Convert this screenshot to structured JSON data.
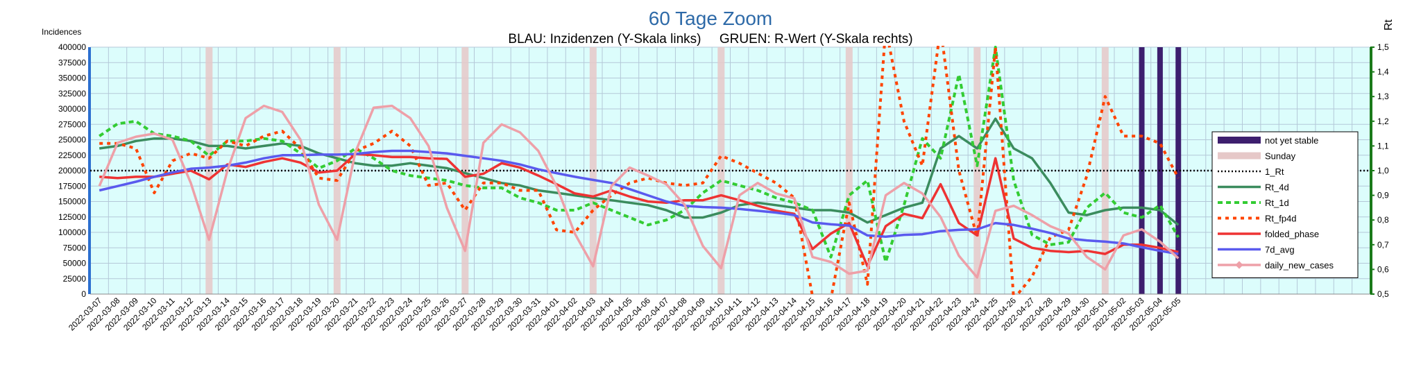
{
  "chart_data": {
    "type": "line",
    "title": "60 Tage Zoom",
    "subtitle": "BLAU: Inzidenzen (Y-Skala links)     GRUEN: R-Wert (Y-Skala rechts)",
    "ylabel_left": "Incidences",
    "ylabel_right": "Rt",
    "ylim_left": [
      0,
      400000
    ],
    "ylim_right": [
      0.5,
      1.5
    ],
    "yticks_left": [
      "0",
      "25000",
      "50000",
      "75000",
      "100000",
      "125000",
      "150000",
      "175000",
      "200000",
      "225000",
      "250000",
      "275000",
      "300000",
      "325000",
      "350000",
      "375000",
      "400000"
    ],
    "yticks_right": [
      "0,5",
      "0,6",
      "0,7",
      "0,8",
      "0,9",
      "1,0",
      "1,1",
      "1,2",
      "1,3",
      "1,4",
      "1,5"
    ],
    "x": [
      "2022-03-07",
      "2022-03-08",
      "2022-03-09",
      "2022-03-10",
      "2022-03-11",
      "2022-03-12",
      "2022-03-13",
      "2022-03-14",
      "2022-03-15",
      "2022-03-16",
      "2022-03-17",
      "2022-03-18",
      "2022-03-19",
      "2022-03-20",
      "2022-03-21",
      "2022-03-22",
      "2022-03-23",
      "2022-03-24",
      "2022-03-25",
      "2022-03-26",
      "2022-03-27",
      "2022-03-28",
      "2022-03-29",
      "2022-03-30",
      "2022-03-31",
      "2022-04-01",
      "2022-04-02",
      "2022-04-03",
      "2022-04-04",
      "2022-04-05",
      "2022-04-06",
      "2022-04-07",
      "2022-04-08",
      "2022-04-09",
      "2022-04-10",
      "2022-04-11",
      "2022-04-12",
      "2022-04-13",
      "2022-04-14",
      "2022-04-15",
      "2022-04-16",
      "2022-04-17",
      "2022-04-18",
      "2022-04-19",
      "2022-04-20",
      "2022-04-21",
      "2022-04-22",
      "2022-04-23",
      "2022-04-24",
      "2022-04-25",
      "2022-04-26",
      "2022-04-27",
      "2022-04-28",
      "2022-04-29",
      "2022-04-30",
      "2022-05-01",
      "2022-05-02",
      "2022-05-03",
      "2022-05-04",
      "2022-05-05"
    ],
    "grid": true,
    "legend_position": "right",
    "sundays": [
      "2022-03-13",
      "2022-03-20",
      "2022-03-27",
      "2022-04-03",
      "2022-04-10",
      "2022-04-17",
      "2022-04-24",
      "2022-05-01"
    ],
    "not_yet_stable": [
      "2022-05-03",
      "2022-05-04",
      "2022-05-05"
    ],
    "series": [
      {
        "name": "not yet stable",
        "color": "#3d1f6e",
        "style": "bar"
      },
      {
        "name": "Sunday",
        "color": "#e6c8c8",
        "style": "bar"
      },
      {
        "name": "1_Rt",
        "color": "#000000",
        "style": "dotted",
        "axis": "right",
        "value": 1.0
      },
      {
        "name": "Rt_4d",
        "color": "#3b8c5e",
        "style": "solid",
        "axis": "right",
        "values": [
          1.09,
          1.1,
          1.12,
          1.13,
          1.13,
          1.12,
          1.1,
          1.1,
          1.09,
          1.1,
          1.11,
          1.1,
          1.07,
          1.05,
          1.03,
          1.02,
          1.02,
          1.03,
          1.02,
          1.01,
          0.99,
          0.97,
          0.95,
          0.94,
          0.92,
          0.91,
          0.9,
          0.89,
          0.88,
          0.87,
          0.86,
          0.84,
          0.81,
          0.81,
          0.83,
          0.86,
          0.87,
          0.86,
          0.85,
          0.84,
          0.84,
          0.83,
          0.79,
          0.82,
          0.85,
          0.87,
          1.09,
          1.14,
          1.09,
          1.21,
          1.09,
          1.05,
          0.95,
          0.83,
          0.82,
          0.84,
          0.85,
          0.85,
          0.84,
          0.78
        ]
      },
      {
        "name": "Rt_1d",
        "color": "#33cc33",
        "style": "dashed",
        "axis": "right",
        "values": [
          1.14,
          1.19,
          1.2,
          1.15,
          1.14,
          1.12,
          1.06,
          1.12,
          1.12,
          1.13,
          1.12,
          1.07,
          1.01,
          1.04,
          1.09,
          1.05,
          1.0,
          0.98,
          0.97,
          0.96,
          0.94,
          0.93,
          0.93,
          0.89,
          0.87,
          0.84,
          0.84,
          0.87,
          0.84,
          0.81,
          0.78,
          0.8,
          0.84,
          0.91,
          0.96,
          0.94,
          0.92,
          0.89,
          0.87,
          0.84,
          0.65,
          0.9,
          0.96,
          0.63,
          0.86,
          1.13,
          1.05,
          1.39,
          1.02,
          1.5,
          0.96,
          0.74,
          0.7,
          0.71,
          0.85,
          0.91,
          0.83,
          0.81,
          0.86,
          0.73
        ]
      },
      {
        "name": "Rt_fp4d",
        "color": "#ff4400",
        "style": "dotted",
        "axis": "right",
        "values": [
          1.11,
          1.11,
          1.09,
          0.91,
          1.04,
          1.07,
          1.05,
          1.12,
          1.1,
          1.14,
          1.16,
          1.09,
          0.97,
          0.96,
          1.08,
          1.11,
          1.16,
          1.1,
          0.94,
          0.95,
          0.84,
          0.95,
          0.95,
          0.92,
          0.92,
          0.76,
          0.75,
          0.84,
          0.9,
          0.95,
          0.97,
          0.95,
          0.94,
          0.95,
          1.06,
          1.03,
          0.99,
          0.95,
          0.89,
          0.49,
          0.48,
          0.87,
          0.54,
          1.58,
          1.2,
          1.02,
          1.58,
          1.0,
          0.73,
          1.5,
          0.48,
          0.57,
          0.73,
          0.76,
          0.98,
          1.3,
          1.14,
          1.14,
          1.11,
          0.97
        ]
      },
      {
        "name": "folded_phase",
        "color": "#ee3333",
        "style": "solid",
        "axis": "left",
        "values": [
          190000,
          188000,
          190000,
          190000,
          195000,
          200000,
          186000,
          210000,
          206000,
          214000,
          220000,
          213000,
          197000,
          200000,
          227000,
          225000,
          222000,
          222000,
          220000,
          219000,
          190000,
          195000,
          212000,
          205000,
          192000,
          178000,
          163000,
          158000,
          168000,
          158000,
          150000,
          148000,
          152000,
          152000,
          160000,
          152000,
          143000,
          135000,
          130000,
          73000,
          98000,
          115000,
          45000,
          110000,
          130000,
          123000,
          178000,
          115000,
          95000,
          220000,
          90000,
          75000,
          70000,
          68000,
          70000,
          65000,
          80000,
          80000,
          75000,
          68000
        ]
      },
      {
        "name": "7d_avg",
        "color": "#5a5aee",
        "style": "solid",
        "axis": "left",
        "values": [
          168000,
          175000,
          182000,
          190000,
          197000,
          203000,
          205000,
          208000,
          213000,
          220000,
          225000,
          225000,
          226000,
          226000,
          227000,
          230000,
          232000,
          232000,
          230000,
          228000,
          224000,
          220000,
          216000,
          210000,
          202000,
          196000,
          190000,
          185000,
          180000,
          170000,
          160000,
          150000,
          143000,
          141000,
          140000,
          138000,
          135000,
          132000,
          128000,
          116000,
          113000,
          111000,
          95000,
          93000,
          96000,
          97000,
          102000,
          104000,
          105000,
          115000,
          112000,
          106000,
          99000,
          90000,
          87000,
          85000,
          82000,
          76000,
          70000,
          65000
        ]
      },
      {
        "name": "daily_new_cases",
        "color": "#eea0a8",
        "style": "solid-marker",
        "axis": "left",
        "values": [
          175000,
          245000,
          255000,
          260000,
          250000,
          180000,
          88000,
          200000,
          285000,
          305000,
          295000,
          250000,
          145000,
          88000,
          230000,
          302000,
          305000,
          285000,
          240000,
          140000,
          70000,
          245000,
          275000,
          262000,
          232000,
          175000,
          98000,
          45000,
          175000,
          205000,
          192000,
          178000,
          145000,
          78000,
          42000,
          160000,
          180000,
          163000,
          155000,
          60000,
          52000,
          33000,
          38000,
          160000,
          180000,
          163000,
          125000,
          62000,
          27000,
          135000,
          143000,
          128000,
          110000,
          98000,
          60000,
          40000,
          95000,
          105000,
          85000,
          58000
        ]
      }
    ]
  }
}
